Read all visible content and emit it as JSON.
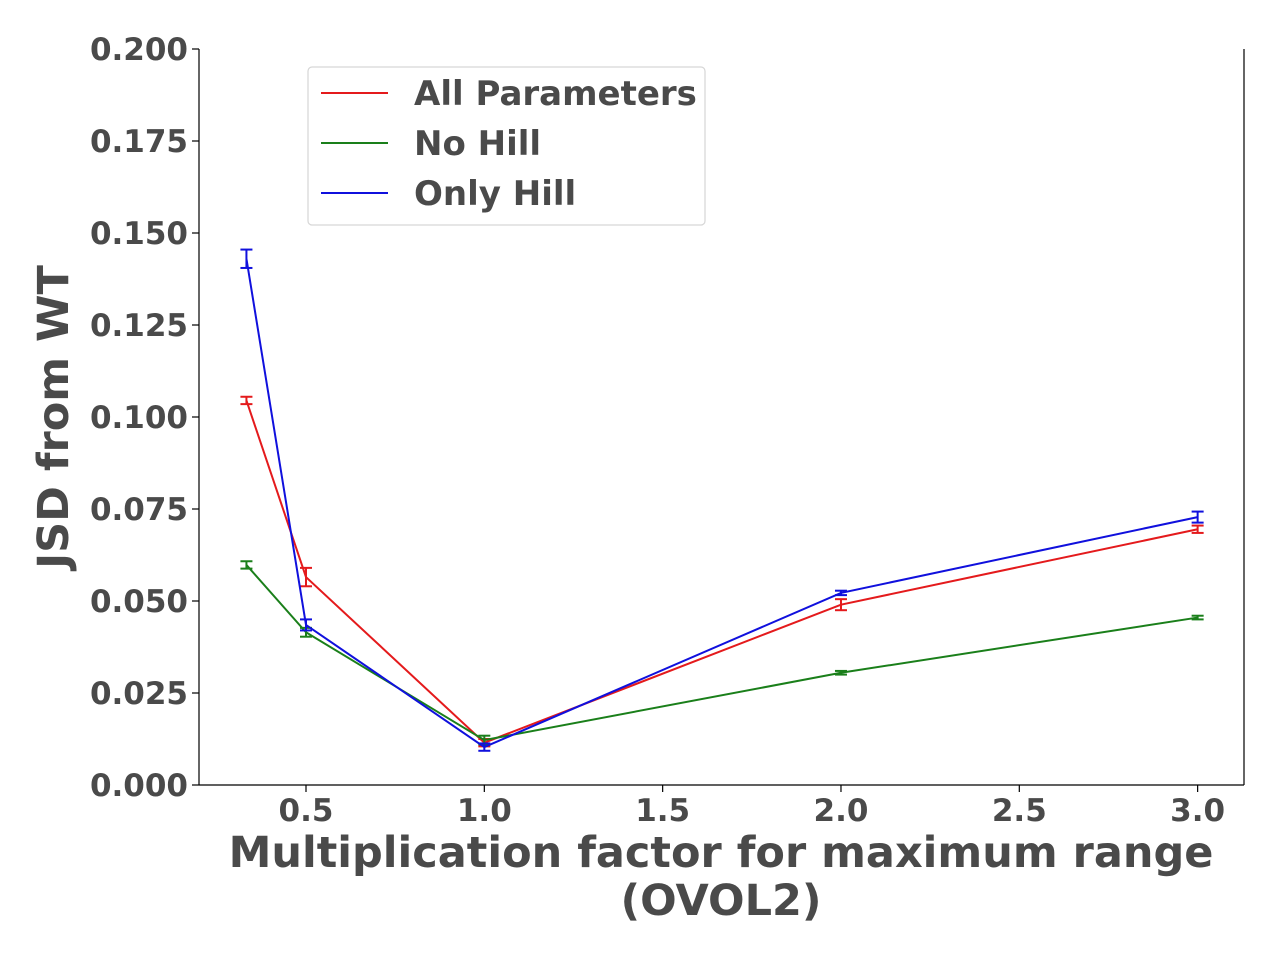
{
  "chart_data": {
    "type": "line",
    "title": "",
    "xlabel_lines": [
      "Multiplication factor for maximum range",
      "(OVOL2)"
    ],
    "ylabel": "JSD from WT",
    "xlim": [
      0.2,
      3.13
    ],
    "ylim": [
      0.0,
      0.2
    ],
    "xticks": [
      0.5,
      1.0,
      1.5,
      2.0,
      2.5,
      3.0
    ],
    "xtick_labels": [
      "0.5",
      "1.0",
      "1.5",
      "2.0",
      "2.5",
      "3.0"
    ],
    "yticks": [
      0.0,
      0.025,
      0.05,
      0.075,
      0.1,
      0.125,
      0.15,
      0.175,
      0.2
    ],
    "ytick_labels": [
      "0.000",
      "0.025",
      "0.050",
      "0.075",
      "0.100",
      "0.125",
      "0.150",
      "0.175",
      "0.200"
    ],
    "grid": false,
    "legend_position": "top-left",
    "series": [
      {
        "name": "All Parameters",
        "color": "#e41a1c",
        "x": [
          0.333,
          0.5,
          1.0,
          2.0,
          3.0
        ],
        "y": [
          0.1045,
          0.0565,
          0.0115,
          0.049,
          0.0695
        ],
        "err": [
          0.001,
          0.0025,
          0.001,
          0.0015,
          0.001
        ]
      },
      {
        "name": "No Hill",
        "color": "#1a7f1a",
        "x": [
          0.333,
          0.5,
          1.0,
          2.0,
          3.0
        ],
        "y": [
          0.0598,
          0.0415,
          0.0122,
          0.0305,
          0.0455
        ],
        "err": [
          0.001,
          0.0012,
          0.0012,
          0.0005,
          0.0005
        ]
      },
      {
        "name": "Only Hill",
        "color": "#1010dd",
        "x": [
          0.333,
          0.5,
          1.0,
          2.0,
          3.0
        ],
        "y": [
          0.143,
          0.0435,
          0.0103,
          0.0522,
          0.0728
        ],
        "err": [
          0.0025,
          0.0015,
          0.001,
          0.0006,
          0.0015
        ]
      }
    ]
  }
}
